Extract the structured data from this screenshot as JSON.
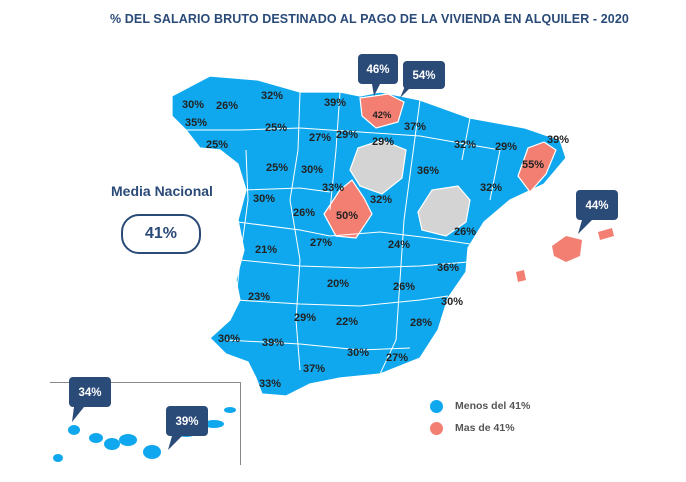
{
  "title": "% DEL SALARIO BRUTO DESTINADO AL PAGO DE LA VIVIENDA EN ALQUILER - 2020",
  "media": {
    "label": "Media Nacional",
    "value": "41%"
  },
  "colors": {
    "below": "#0fa8ee",
    "above": "#f27f72",
    "nodata": "#d4d4d4",
    "callout": "#2a4a78",
    "border": "#ffffff"
  },
  "legend": [
    {
      "label": "Menos del 41%",
      "color": "#0fa8ee"
    },
    {
      "label": "Mas de 41%",
      "color": "#f27f72"
    }
  ],
  "province_values": [
    "30%",
    "26%",
    "32%",
    "39%",
    "35%",
    "25%",
    "25%",
    "27%",
    "29%",
    "29%",
    "37%",
    "42%",
    "39%",
    "32%",
    "29%",
    "55%",
    "25%",
    "30%",
    "36%",
    "33%",
    "30%",
    "26%",
    "50%",
    "32%",
    "32%",
    "21%",
    "27%",
    "24%",
    "26%",
    "36%",
    "20%",
    "26%",
    "23%",
    "30%",
    "29%",
    "22%",
    "28%",
    "30%",
    "39%",
    "30%",
    "27%",
    "37%",
    "33%"
  ],
  "callouts": [
    "46%",
    "54%",
    "44%",
    "34%",
    "39%"
  ]
}
